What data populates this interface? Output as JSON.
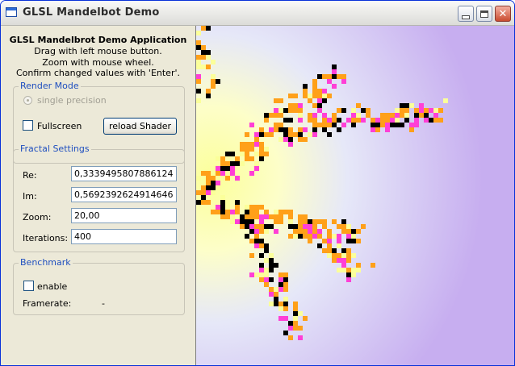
{
  "window": {
    "title": "GLSL Mandelbot Demo"
  },
  "header": {
    "title": "GLSL Mandelbrot Demo Application",
    "line1": "Drag with left mouse button.",
    "line2": "Zoom with mouse wheel.",
    "line3": "Confirm changed values with 'Enter'."
  },
  "render_mode": {
    "title": "Render Mode",
    "single_precision_label": "single precision",
    "fullscreen_label": "Fullscreen",
    "reload_button": "reload Shader"
  },
  "fractal_settings": {
    "title": "Fractal Settings",
    "re_label": "Re:",
    "re_value": "0,3339495807886124",
    "im_label": "Im:",
    "im_value": "0,5692392624914646",
    "zoom_label": "Zoom:",
    "zoom_value": "20,00",
    "iterations_label": "Iterations:",
    "iterations_value": "400"
  },
  "benchmark": {
    "title": "Benchmark",
    "enable_label": "enable",
    "framerate_label": "Framerate:",
    "framerate_value": "-"
  },
  "colors": {
    "background_purple": "#c7aef0",
    "glow_yellow": "#fbff9a",
    "fractal_orange": "#ffa019",
    "fractal_magenta": "#ff3fd6",
    "fractal_black": "#000000",
    "group_title_blue": "#1f4fbf"
  }
}
